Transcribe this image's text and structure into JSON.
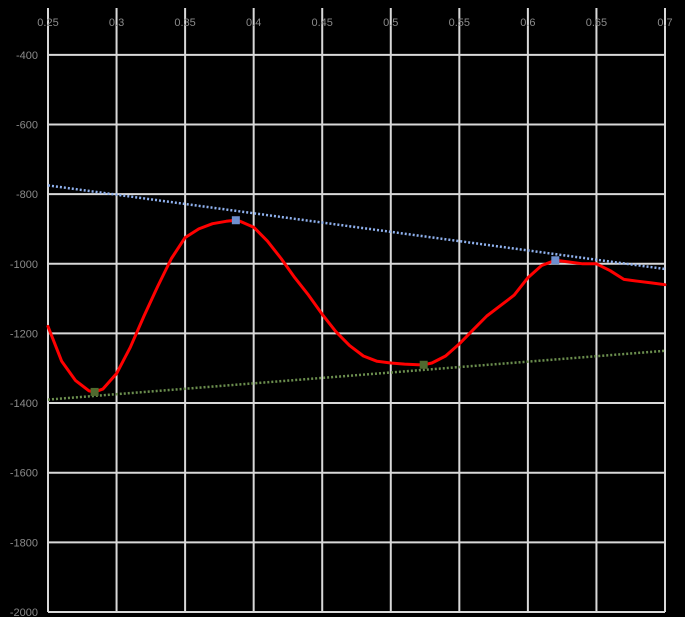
{
  "chart_data": {
    "type": "line",
    "title": "",
    "xlabel": "",
    "ylabel": "",
    "xlim": [
      0.25,
      0.7
    ],
    "ylim": [
      -2000,
      -300
    ],
    "grid": true,
    "x_ticks": [
      0.25,
      0.3,
      0.35,
      0.4,
      0.45,
      0.5,
      0.55,
      0.6,
      0.65,
      0.7
    ],
    "x_tick_labels": [
      "0.25",
      "0.3",
      "0.35",
      "0.4",
      "0.45",
      "0.5",
      "0.55",
      "0.6",
      "0.65",
      "0.7"
    ],
    "y_ticks": [
      -400,
      -600,
      -800,
      -1000,
      -1200,
      -1400,
      -1600,
      -1800,
      -2000
    ],
    "y_tick_labels": [
      "-400",
      "-600",
      "-800",
      "-1000",
      "-1200",
      "-1400",
      "-1600",
      "-1800",
      "-2000"
    ],
    "series": [
      {
        "style": "solid",
        "color": "#ff0000",
        "x": [
          0.25,
          0.26,
          0.27,
          0.28,
          0.284,
          0.29,
          0.3,
          0.31,
          0.32,
          0.33,
          0.34,
          0.35,
          0.36,
          0.37,
          0.38,
          0.387,
          0.39,
          0.4,
          0.41,
          0.42,
          0.43,
          0.44,
          0.45,
          0.46,
          0.47,
          0.48,
          0.49,
          0.5,
          0.51,
          0.52,
          0.524,
          0.53,
          0.54,
          0.55,
          0.56,
          0.57,
          0.58,
          0.59,
          0.6,
          0.61,
          0.62,
          0.63,
          0.64,
          0.65,
          0.66,
          0.67,
          0.68,
          0.69,
          0.7
        ],
        "y": [
          -1180,
          -1280,
          -1335,
          -1365,
          -1368,
          -1360,
          -1315,
          -1240,
          -1150,
          -1065,
          -985,
          -925,
          -900,
          -885,
          -878,
          -875,
          -878,
          -895,
          -935,
          -985,
          -1040,
          -1090,
          -1145,
          -1195,
          -1235,
          -1265,
          -1280,
          -1285,
          -1288,
          -1290,
          -1290,
          -1285,
          -1265,
          -1230,
          -1190,
          -1150,
          -1120,
          -1090,
          -1040,
          -1005,
          -990,
          -995,
          -1000,
          -1000,
          -1020,
          -1045,
          -1050,
          -1055,
          -1060
        ]
      },
      {
        "style": "dotted",
        "color": "#8fb1ee",
        "x": [
          0.25,
          0.7
        ],
        "y": [
          -775,
          -1015
        ]
      },
      {
        "style": "dotted",
        "color": "#6b8e4e",
        "x": [
          0.25,
          0.7
        ],
        "y": [
          -1390,
          -1250
        ]
      }
    ],
    "markers": [
      {
        "x": 0.387,
        "y": -875,
        "color": "#6d8fcf"
      },
      {
        "x": 0.62,
        "y": -990,
        "color": "#6d8fcf"
      },
      {
        "x": 0.284,
        "y": -1368,
        "color": "#4f6a2f"
      },
      {
        "x": 0.524,
        "y": -1290,
        "color": "#4f6a2f"
      }
    ]
  }
}
